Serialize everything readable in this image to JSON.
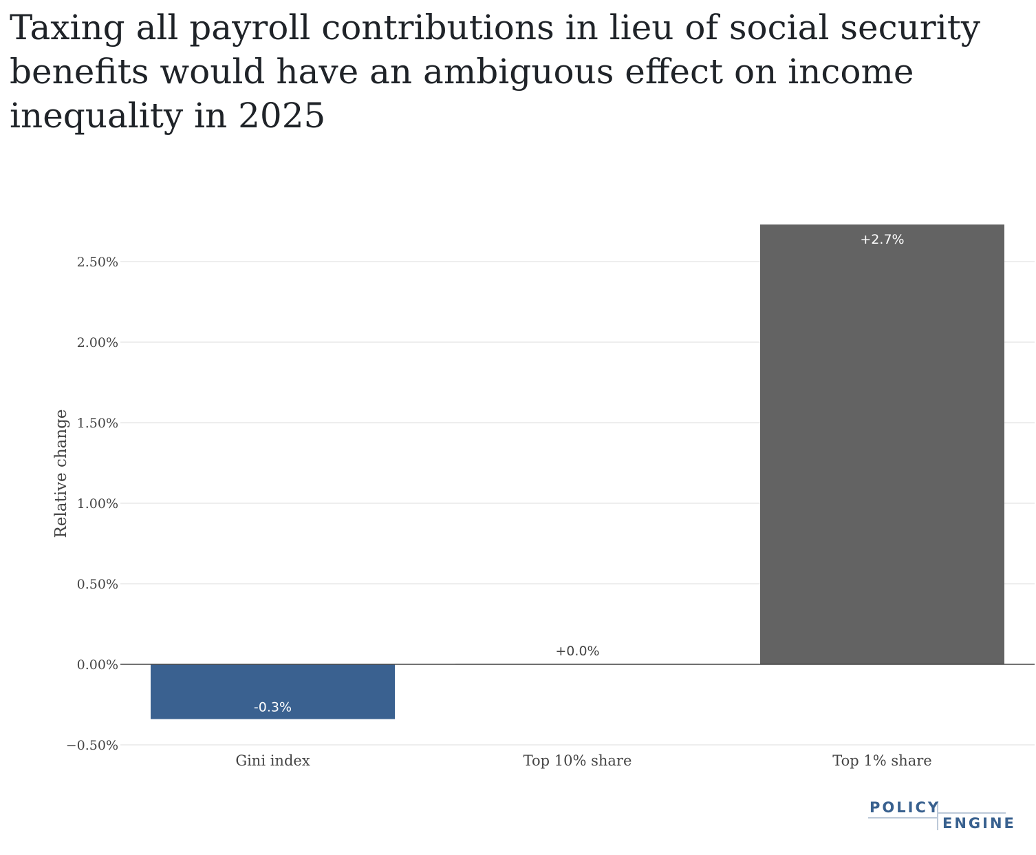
{
  "title": "Taxing all payroll contributions in lieu of social security benefits would have an ambiguous effect on income inequality in 2025",
  "logo": {
    "line1": "POLICY",
    "line2": "ENGINE"
  },
  "chart_data": {
    "type": "bar",
    "title": "Taxing all payroll contributions in lieu of social security benefits would have an ambiguous effect on income inequality in 2025",
    "xlabel": "",
    "ylabel": "Relative change",
    "categories": [
      "Gini index",
      "Top 10% share",
      "Top 1% share"
    ],
    "values": [
      -0.34,
      0.003,
      2.73
    ],
    "data_labels": [
      "-0.3%",
      "+0.0%",
      "+2.7%"
    ],
    "ylim": [
      -0.55,
      2.85
    ],
    "yticks": [
      -0.5,
      0,
      0.5,
      1,
      1.5,
      2,
      2.5
    ],
    "ytick_labels": [
      "−0.50%",
      "0.00%",
      "0.50%",
      "1.00%",
      "1.50%",
      "2.00%",
      "2.50%"
    ],
    "colors": [
      "#3a6190",
      "#636363",
      "#636363"
    ],
    "grid": true
  }
}
